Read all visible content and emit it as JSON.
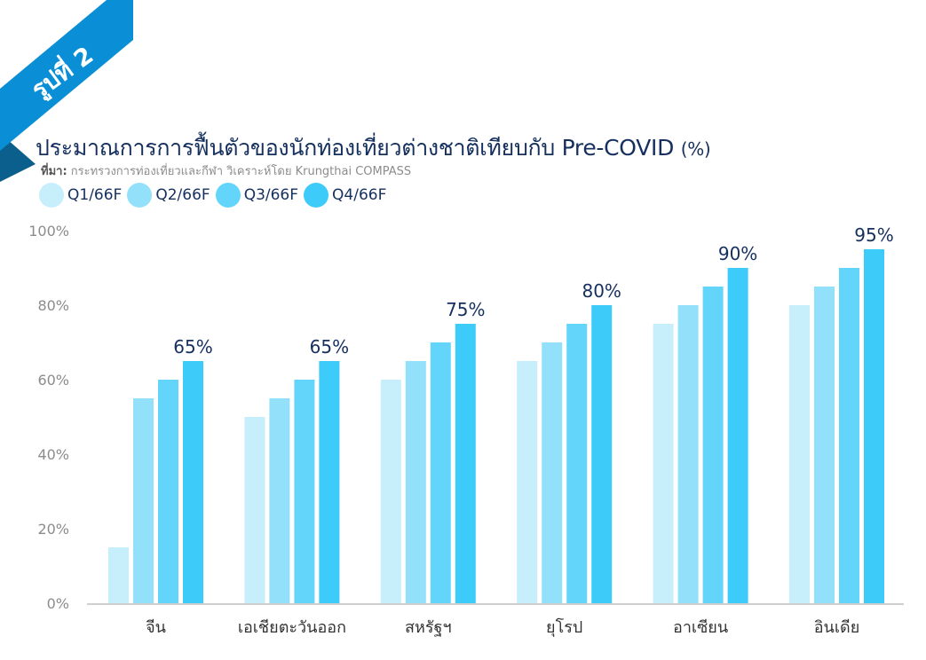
{
  "figure_label": "รูปที่ 2",
  "title": "ประมาณการการฟื้นตัวของนักท่องเที่ยวต่างชาติเทียบกับ Pre-COVID",
  "title_unit": "(%)",
  "source_label": "ที่มา:",
  "source_text": " กระทรวงการท่องเที่ยวและกีฬา วิเคราะห์โดย Krungthai COMPASS",
  "colors": {
    "ribbon": "#0a8fd6",
    "ribbon_dark": "#0b5f8c",
    "title": "#15305e",
    "axis_text": "#8c8c8c",
    "axis_line": "#bfbfbf"
  },
  "chart_data": {
    "type": "bar",
    "categories": [
      "จีน",
      "เอเชียตะวันออก",
      "สหรัฐฯ",
      "ยุโรป",
      "อาเซียน",
      "อินเดีย"
    ],
    "series": [
      {
        "name": "Q1/66F",
        "color": "#c6eefb",
        "values": [
          15,
          50,
          60,
          65,
          75,
          80
        ]
      },
      {
        "name": "Q2/66F",
        "color": "#92e0fa",
        "values": [
          55,
          55,
          65,
          70,
          80,
          85
        ]
      },
      {
        "name": "Q3/66F",
        "color": "#63d5fa",
        "values": [
          60,
          60,
          70,
          75,
          85,
          90
        ]
      },
      {
        "name": "Q4/66F",
        "color": "#3dccf9",
        "values": [
          65,
          65,
          75,
          80,
          90,
          95
        ]
      }
    ],
    "data_labels": [
      "65%",
      "65%",
      "75%",
      "80%",
      "90%",
      "95%"
    ],
    "y_ticks": [
      "0%",
      "20%",
      "40%",
      "60%",
      "80%",
      "100%"
    ],
    "ylim": [
      0,
      100
    ],
    "grid": false,
    "legend_position": "top-left"
  }
}
